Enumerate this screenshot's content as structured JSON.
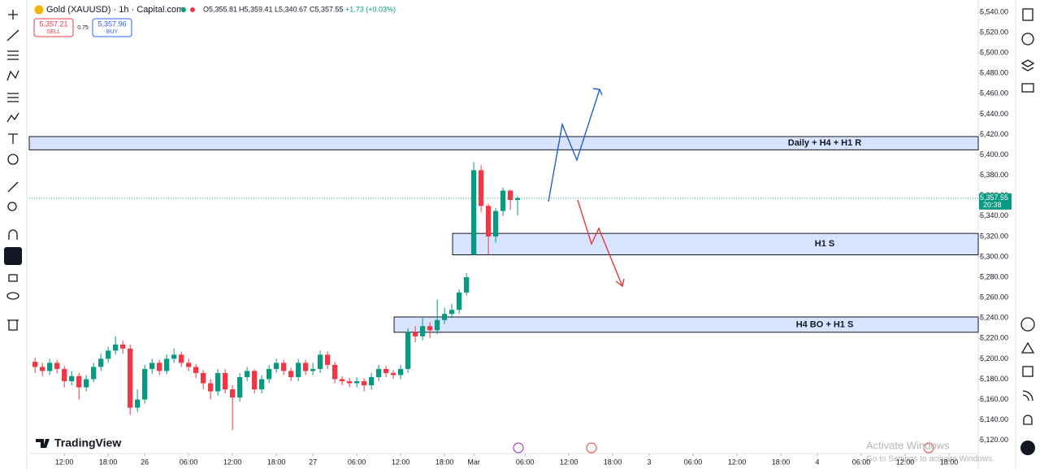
{
  "header": {
    "symbol": "Gold (XAUUSD) · 1h · Capital.com",
    "open": "O5,355.81",
    "high": "H5,359.41",
    "low": "L5,340.67",
    "close": "C5,357.55",
    "change": "+1.73 (+0.03%)",
    "sell_price": "5,357.21",
    "sell": "SELL",
    "spread": "0.75",
    "buy_price": "5,357.96",
    "buy": "BUY"
  },
  "brand": "TradingView",
  "watermark": {
    "title": "Activate Windows",
    "subtitle": "Go to Settings to activate Windows."
  },
  "chart_data": {
    "type": "candlestick",
    "up_color": "#089981",
    "down_color": "#f23645",
    "grid": false,
    "x": [
      -4,
      -3,
      -2,
      -1,
      0,
      1,
      2,
      3,
      4,
      5,
      6,
      7,
      8,
      9,
      10,
      11,
      12,
      13,
      14,
      15,
      16,
      17,
      18,
      19,
      20,
      21,
      22,
      23,
      24,
      25,
      26,
      27,
      28,
      29,
      30,
      31,
      32,
      33,
      34,
      35,
      36,
      37,
      38,
      39,
      40,
      41,
      42,
      43,
      44,
      45,
      46,
      47,
      48,
      49,
      50,
      51,
      52,
      53,
      54,
      55,
      56,
      57,
      58,
      59,
      60,
      61,
      62
    ],
    "open": [
      5197,
      5192,
      5188,
      5196,
      5190,
      5178,
      5183,
      5172,
      5180,
      5192,
      5200,
      5208,
      5214,
      5210,
      5152,
      5160,
      5190,
      5196,
      5188,
      5200,
      5204,
      5196,
      5192,
      5186,
      5176,
      5168,
      5186,
      5170,
      5162,
      5182,
      5188,
      5170,
      5180,
      5190,
      5196,
      5188,
      5182,
      5196,
      5188,
      5190,
      5204,
      5194,
      5180,
      5178,
      5176,
      5178,
      5174,
      5182,
      5190,
      5186,
      5184,
      5190,
      5226,
      5222,
      5232,
      5228,
      5238,
      5244,
      5248,
      5265,
      5302,
      5385,
      5350,
      5320,
      5345,
      5365,
      5355.81
    ],
    "high": [
      5201,
      5196,
      5200,
      5199,
      5193,
      5188,
      5186,
      5184,
      5196,
      5205,
      5212,
      5222,
      5218,
      5214,
      5170,
      5194,
      5200,
      5199,
      5204,
      5210,
      5207,
      5200,
      5195,
      5189,
      5180,
      5190,
      5190,
      5174,
      5186,
      5192,
      5190,
      5184,
      5194,
      5200,
      5199,
      5191,
      5200,
      5199,
      5196,
      5208,
      5207,
      5197,
      5183,
      5181,
      5182,
      5181,
      5186,
      5194,
      5193,
      5189,
      5194,
      5230,
      5232,
      5240,
      5236,
      5258,
      5250,
      5254,
      5268,
      5284,
      5393,
      5390,
      5352,
      5348,
      5368,
      5366,
      5359.41
    ],
    "low": [
      5186,
      5183,
      5184,
      5186,
      5172,
      5174,
      5160,
      5168,
      5177,
      5188,
      5196,
      5204,
      5205,
      5145,
      5148,
      5156,
      5185,
      5184,
      5185,
      5196,
      5192,
      5188,
      5181,
      5170,
      5160,
      5164,
      5166,
      5130,
      5158,
      5178,
      5166,
      5166,
      5176,
      5186,
      5184,
      5178,
      5178,
      5184,
      5184,
      5186,
      5190,
      5176,
      5174,
      5172,
      5172,
      5168,
      5170,
      5178,
      5182,
      5180,
      5180,
      5186,
      5216,
      5218,
      5220,
      5224,
      5234,
      5240,
      5244,
      5262,
      5302,
      5344,
      5302,
      5314,
      5340,
      5346,
      5340.67
    ],
    "close": [
      5192,
      5188,
      5196,
      5190,
      5178,
      5183,
      5172,
      5180,
      5192,
      5200,
      5208,
      5214,
      5210,
      5152,
      5160,
      5190,
      5196,
      5188,
      5200,
      5204,
      5196,
      5192,
      5186,
      5176,
      5168,
      5186,
      5170,
      5162,
      5182,
      5188,
      5170,
      5180,
      5190,
      5196,
      5188,
      5182,
      5196,
      5188,
      5190,
      5204,
      5194,
      5180,
      5178,
      5176,
      5178,
      5174,
      5182,
      5190,
      5186,
      5184,
      5190,
      5226,
      5222,
      5232,
      5228,
      5238,
      5244,
      5248,
      5265,
      5280,
      5385,
      5350,
      5320,
      5345,
      5365,
      5355.81,
      5357.55
    ],
    "xlim": [
      -4.8,
      125
    ],
    "xticks": [
      {
        "value": 0,
        "label": "12:00"
      },
      {
        "value": 6,
        "label": "18:00"
      },
      {
        "value": 11,
        "label": "26"
      },
      {
        "value": 17,
        "label": "06:00"
      },
      {
        "value": 23,
        "label": "12:00"
      },
      {
        "value": 29,
        "label": "18:00"
      },
      {
        "value": 34,
        "label": "27"
      },
      {
        "value": 40,
        "label": "06:00"
      },
      {
        "value": 46,
        "label": "12:00"
      },
      {
        "value": 52,
        "label": "18:00"
      },
      {
        "value": 56,
        "label": "Mar"
      },
      {
        "value": 63,
        "label": "06:00"
      },
      {
        "value": 69,
        "label": "12:00"
      },
      {
        "value": 75,
        "label": "18:00"
      },
      {
        "value": 80,
        "label": "3"
      },
      {
        "value": 86,
        "label": "06:00"
      },
      {
        "value": 92,
        "label": "12:00"
      },
      {
        "value": 98,
        "label": "18:00"
      },
      {
        "value": 103,
        "label": "4"
      },
      {
        "value": 109,
        "label": "06:00"
      },
      {
        "value": 115,
        "label": "12:00"
      },
      {
        "value": 121,
        "label": "18:00"
      }
    ],
    "ylim": [
      5107,
      5552
    ],
    "yticks": [
      {
        "value": 5120,
        "label": "5,120.00"
      },
      {
        "value": 5140,
        "label": "5,140.00"
      },
      {
        "value": 5160,
        "label": "5,160.00"
      },
      {
        "value": 5180,
        "label": "5,180.00"
      },
      {
        "value": 5200,
        "label": "5,200.00"
      },
      {
        "value": 5220,
        "label": "5,220.00"
      },
      {
        "value": 5240,
        "label": "5,240.00"
      },
      {
        "value": 5260,
        "label": "5,260.00"
      },
      {
        "value": 5280,
        "label": "5,280.00"
      },
      {
        "value": 5300,
        "label": "5,300.00"
      },
      {
        "value": 5320,
        "label": "5,320.00"
      },
      {
        "value": 5340,
        "label": "5,340.00"
      },
      {
        "value": 5360,
        "label": "5,360.00"
      },
      {
        "value": 5380,
        "label": "5,380.00"
      },
      {
        "value": 5400,
        "label": "5,400.00"
      },
      {
        "value": 5420,
        "label": "5,420.00"
      },
      {
        "value": 5440,
        "label": "5,440.00"
      },
      {
        "value": 5460,
        "label": "5,460.00"
      },
      {
        "value": 5480,
        "label": "5,480.00"
      },
      {
        "value": 5500,
        "label": "5,500.00"
      },
      {
        "value": 5520,
        "label": "5,520.00"
      },
      {
        "value": 5540,
        "label": "5,540.00"
      }
    ],
    "last_price": {
      "value": 5357.55,
      "label": "5,357.55"
    },
    "countdown": "20:38",
    "zones": [
      {
        "label": "Daily + H4 + H1 R",
        "y": [
          5405,
          5418
        ],
        "x": -4.8
      },
      {
        "label": "H1 S",
        "y": [
          5302,
          5323
        ],
        "x": 53.1
      },
      {
        "label": "H4 BO + H1 S",
        "y": [
          5226,
          5241
        ],
        "x": 45.1
      }
    ]
  }
}
